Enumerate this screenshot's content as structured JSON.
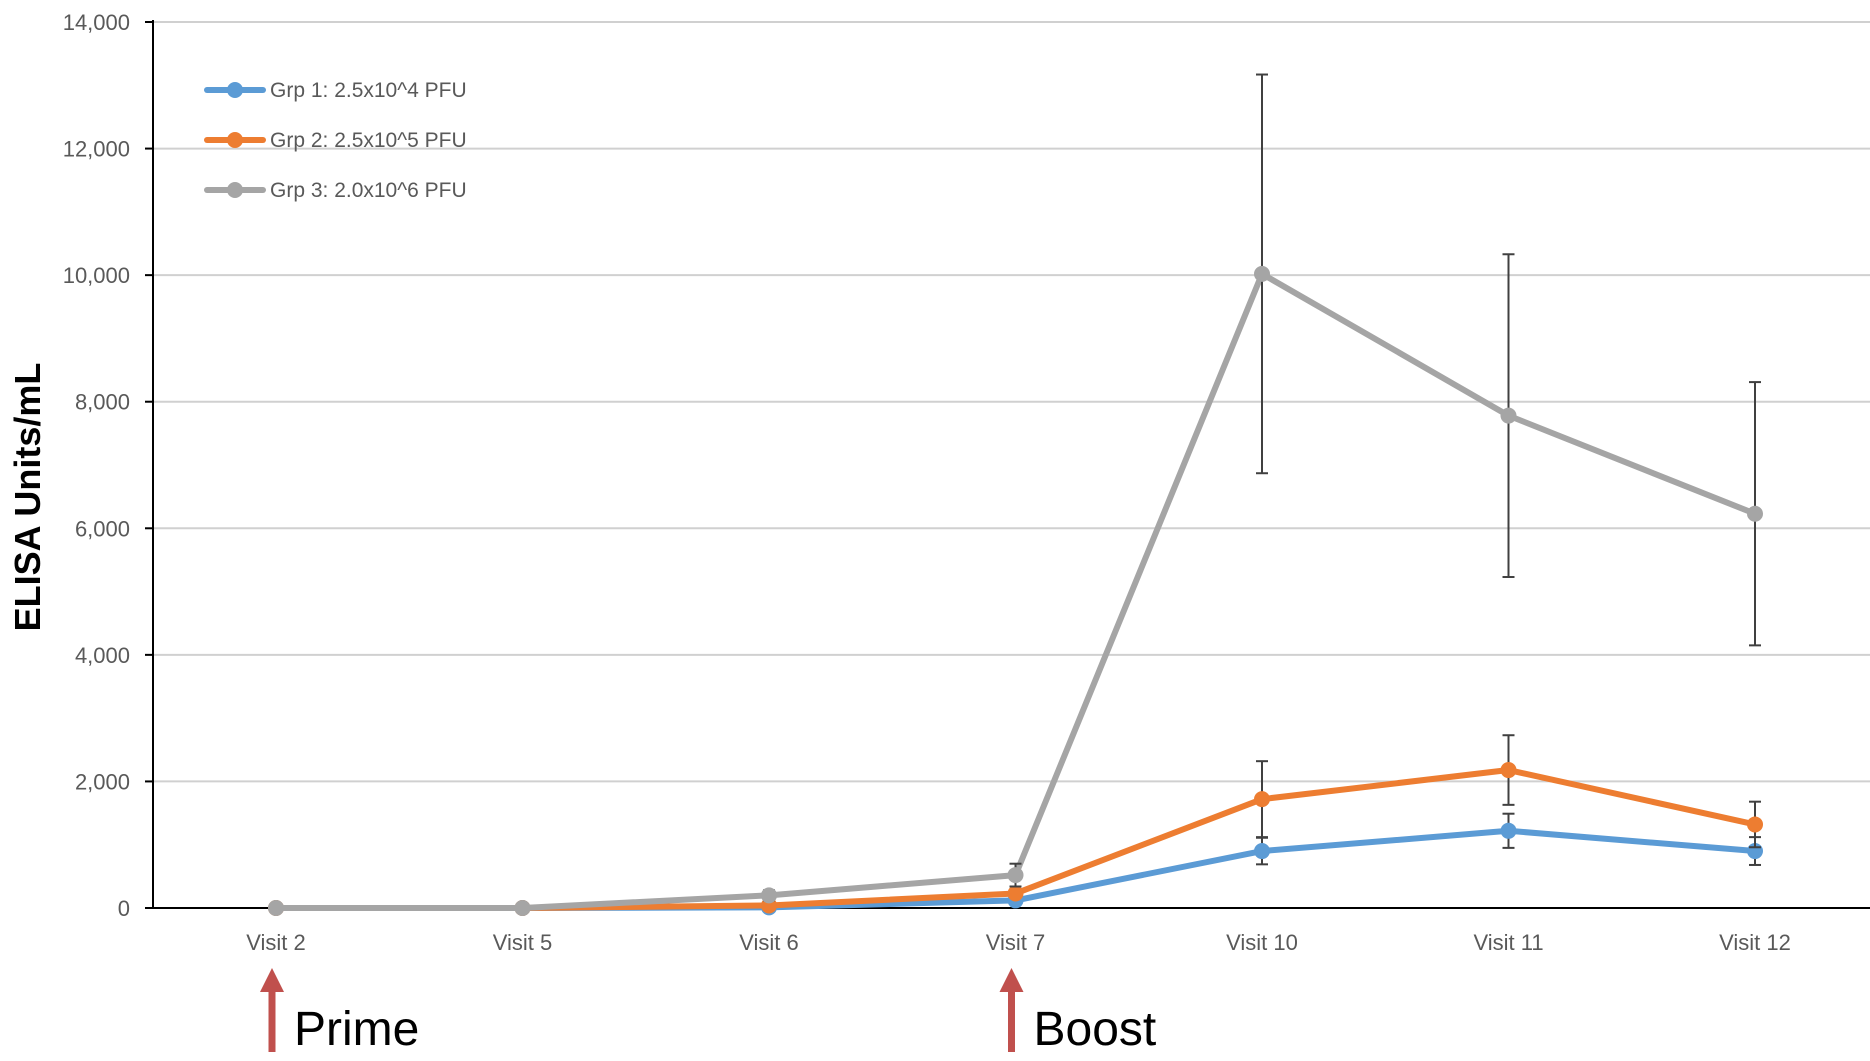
{
  "chart_data": {
    "type": "line",
    "title": "",
    "xlabel": "",
    "ylabel": "ELISA Units/mL",
    "ylim": [
      0,
      14000
    ],
    "y_ticks": [
      "0",
      "2,000",
      "4,000",
      "6,000",
      "8,000",
      "10,000",
      "12,000",
      "14,000"
    ],
    "grid": "horizontal",
    "legend_position": "top-left",
    "categories": [
      "Visit 2",
      "Visit 5",
      "Visit 6",
      "Visit 7",
      "Visit 10",
      "Visit 11",
      "Visit 12"
    ],
    "series": [
      {
        "name": "Grp 1: 2.5x10^4 PFU",
        "color": "#5b9bd5",
        "values": [
          0,
          0,
          10,
          120,
          900,
          1220,
          900
        ],
        "error": [
          null,
          null,
          null,
          null,
          210,
          270,
          220
        ]
      },
      {
        "name": "Grp 2: 2.5x10^5 PFU",
        "color": "#ed7d31",
        "values": [
          0,
          0,
          40,
          230,
          1720,
          2180,
          1320
        ],
        "error": [
          null,
          null,
          null,
          null,
          600,
          550,
          360
        ]
      },
      {
        "name": "Grp 3: 2.0x10^6 PFU",
        "color": "#a5a5a5",
        "values": [
          0,
          0,
          200,
          520,
          10020,
          7780,
          6230
        ],
        "error": [
          null,
          null,
          80,
          180,
          3150,
          2550,
          2080
        ]
      }
    ],
    "annotations": [
      {
        "text": "Prime",
        "category": "Visit 2",
        "arrow_color": "#c0504d"
      },
      {
        "text": "Boost",
        "category": "Visit 7",
        "arrow_color": "#c0504d"
      }
    ]
  }
}
